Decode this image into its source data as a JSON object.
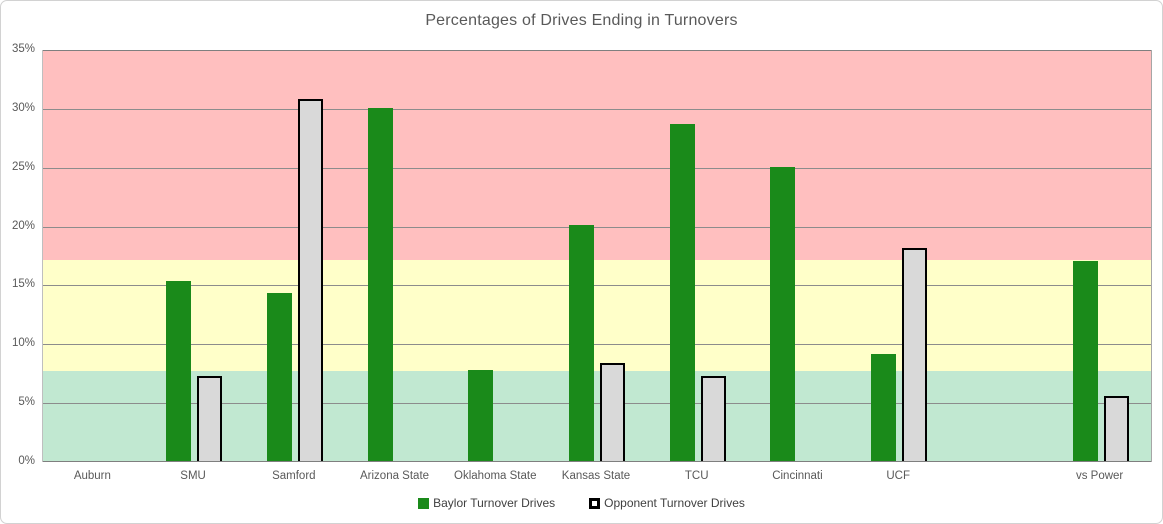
{
  "title": "Percentages of Drives Ending in Turnovers",
  "chart_data": {
    "type": "bar",
    "title": "Percentages of Drives Ending in Turnovers",
    "xlabel": "",
    "ylabel": "",
    "ylim": [
      0,
      35
    ],
    "ytick_step": 5,
    "ytick_labels": [
      "0%",
      "5%",
      "10%",
      "15%",
      "20%",
      "25%",
      "30%",
      "35%"
    ],
    "grid": true,
    "legend_position": "bottom",
    "categories": [
      "Auburn",
      "SMU",
      "Samford",
      "Arizona State",
      "Oklahoma State",
      "Kansas State",
      "TCU",
      "Cincinnati",
      "UCF",
      "",
      "vs Power"
    ],
    "series": [
      {
        "name": "Baylor Turnover Drives",
        "color": "#1a8a1a",
        "values": [
          0,
          15.4,
          14.4,
          30.1,
          7.8,
          20.1,
          28.7,
          25.1,
          9.2,
          null,
          17.1
        ]
      },
      {
        "name": "Opponent Turnover Drives",
        "color": "#d9d9d9",
        "border_color": "#000000",
        "values": [
          0,
          7.3,
          30.8,
          0,
          0,
          8.4,
          7.3,
          0,
          18.2,
          null,
          5.6
        ]
      }
    ],
    "background_bands": [
      {
        "from": 0,
        "to": 7.7,
        "color": "#c1e8d1",
        "meaning": "good"
      },
      {
        "from": 7.7,
        "to": 17.2,
        "color": "#ffffc9",
        "meaning": "caution"
      },
      {
        "from": 17.2,
        "to": 35,
        "color": "#ffbfbf",
        "meaning": "bad"
      }
    ],
    "colors": {
      "gridline": "#8c8c8c",
      "axis_text": "#595959",
      "title_text": "#595959",
      "legend_text": "#404040"
    }
  }
}
